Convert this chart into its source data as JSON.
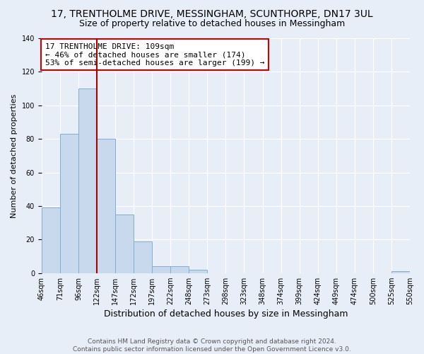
{
  "title": "17, TRENTHOLME DRIVE, MESSINGHAM, SCUNTHORPE, DN17 3UL",
  "subtitle": "Size of property relative to detached houses in Messingham",
  "xlabel": "Distribution of detached houses by size in Messingham",
  "ylabel": "Number of detached properties",
  "bar_heights": [
    39,
    83,
    110,
    80,
    35,
    19,
    4,
    4,
    2,
    0,
    0,
    0,
    0,
    0,
    0,
    0,
    0,
    0,
    0,
    1
  ],
  "bin_labels": [
    "46sqm",
    "71sqm",
    "96sqm",
    "122sqm",
    "147sqm",
    "172sqm",
    "197sqm",
    "222sqm",
    "248sqm",
    "273sqm",
    "298sqm",
    "323sqm",
    "348sqm",
    "374sqm",
    "399sqm",
    "424sqm",
    "449sqm",
    "474sqm",
    "500sqm",
    "525sqm",
    "550sqm"
  ],
  "bar_color": "#c8d9ee",
  "bar_edge_color": "#7fafd4",
  "vline_x_index": 2.5,
  "vline_color": "#aa0000",
  "annotation_line1": "17 TRENTHOLME DRIVE: 109sqm",
  "annotation_line2": "← 46% of detached houses are smaller (174)",
  "annotation_line3": "53% of semi-detached houses are larger (199) →",
  "annotation_box_color": "#ffffff",
  "annotation_box_edge": "#cc0000",
  "ylim": [
    0,
    140
  ],
  "yticks": [
    0,
    20,
    40,
    60,
    80,
    100,
    120,
    140
  ],
  "footer_text": "Contains HM Land Registry data © Crown copyright and database right 2024.\nContains public sector information licensed under the Open Government Licence v3.0.",
  "background_color": "#e8eef8",
  "plot_background": "#e8eef8",
  "grid_color": "#ffffff",
  "title_fontsize": 10,
  "subtitle_fontsize": 9,
  "xlabel_fontsize": 9,
  "ylabel_fontsize": 8,
  "tick_fontsize": 7,
  "footer_fontsize": 6.5,
  "annotation_fontsize": 8
}
